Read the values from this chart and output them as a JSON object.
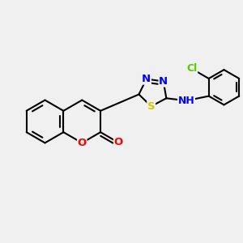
{
  "background_color": "#f0f0f0",
  "bond_color": "#000000",
  "atom_colors": {
    "N": "#0000ff",
    "O": "#ff0000",
    "S": "#cccc00",
    "Cl": "#55cc00",
    "C": "#000000",
    "H": "#000000"
  },
  "figsize": [
    3.0,
    3.0
  ],
  "dpi": 100
}
